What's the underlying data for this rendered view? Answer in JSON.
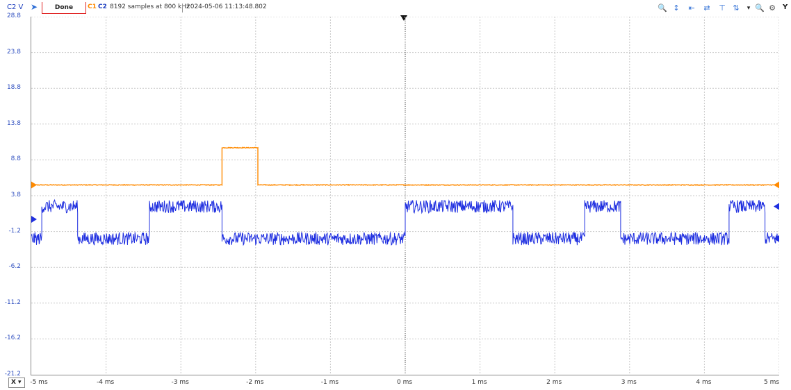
{
  "toolbar": {
    "channel_label": "C2 V",
    "run_icon": "play-arrow-icon",
    "status_button": "Done",
    "channel1": "C1",
    "channel2": "C2",
    "samples_info": "8192 samples at 800 kHz",
    "timestamp": "2024-05-06 11:13:48.802",
    "tools": [
      "zoom-in-icon",
      "horizontal-cursor-icon",
      "fit-horizontal-icon",
      "vertical-cursor-icon",
      "fit-vertical-icon",
      "measure-icon",
      "zoom-out-icon",
      "settings-icon"
    ],
    "y_button": "Y"
  },
  "x_mode": {
    "label": "X",
    "dropdown_icon": "chevron-down-icon"
  },
  "colors": {
    "c1": "#ff8a00",
    "c2": "#1f2fe0",
    "grid": "#c8c8c8",
    "axis_text": "#3050c0"
  },
  "chart_data": {
    "type": "line",
    "ylabel": "C2 V",
    "y_ticks": [
      "28.8",
      "23.8",
      "18.8",
      "13.8",
      "8.8",
      "3.8",
      "-1.2",
      "-6.2",
      "-11.2",
      "-16.2",
      "-21.2"
    ],
    "x_ticks": [
      "-5 ms",
      "-4 ms",
      "-3 ms",
      "-2 ms",
      "-1 ms",
      "0 ms",
      "1 ms",
      "2 ms",
      "3 ms",
      "4 ms",
      "5 ms"
    ],
    "xlim": [
      -5,
      5
    ],
    "ylim": [
      -21.2,
      28.8
    ],
    "grid": true,
    "trigger_time": 0,
    "series": [
      {
        "name": "C1",
        "color": "#ff8a00",
        "noise": 0.05,
        "levels": [
          {
            "t0": -5.0,
            "t1": -2.45,
            "v": 5.3
          },
          {
            "t0": -2.45,
            "t1": -1.97,
            "v": 10.5
          },
          {
            "t0": -1.97,
            "t1": 5.0,
            "v": 5.3
          }
        ]
      },
      {
        "name": "C2",
        "color": "#1f2fe0",
        "noise": 0.9,
        "levels": [
          {
            "t0": -5.0,
            "t1": -4.86,
            "v": -2.2
          },
          {
            "t0": -4.86,
            "t1": -4.38,
            "v": 2.3
          },
          {
            "t0": -4.38,
            "t1": -3.42,
            "v": -2.2
          },
          {
            "t0": -3.42,
            "t1": -2.45,
            "v": 2.3
          },
          {
            "t0": -2.45,
            "t1": 0.0,
            "v": -2.2
          },
          {
            "t0": 0.0,
            "t1": 1.44,
            "v": 2.3
          },
          {
            "t0": 1.44,
            "t1": 2.4,
            "v": -2.2
          },
          {
            "t0": 2.4,
            "t1": 2.88,
            "v": 2.3
          },
          {
            "t0": 2.88,
            "t1": 4.33,
            "v": -2.2
          },
          {
            "t0": 4.33,
            "t1": 4.81,
            "v": 2.3
          },
          {
            "t0": 4.81,
            "t1": 5.0,
            "v": -2.2
          }
        ]
      }
    ],
    "markers": [
      {
        "name": "c1-level-marker-left",
        "channel": "C1",
        "v": 5.3,
        "side": "left"
      },
      {
        "name": "c1-level-marker-right",
        "channel": "C1",
        "v": 5.3,
        "side": "right"
      },
      {
        "name": "c2-level-marker-left",
        "channel": "C2",
        "v": 0.5,
        "side": "left"
      },
      {
        "name": "c2-level-marker-right-top",
        "channel": "C2",
        "v": 2.3,
        "side": "right"
      },
      {
        "name": "c2-level-marker-right-bottom",
        "channel": "C2",
        "v": -2.2,
        "side": "right"
      }
    ]
  }
}
